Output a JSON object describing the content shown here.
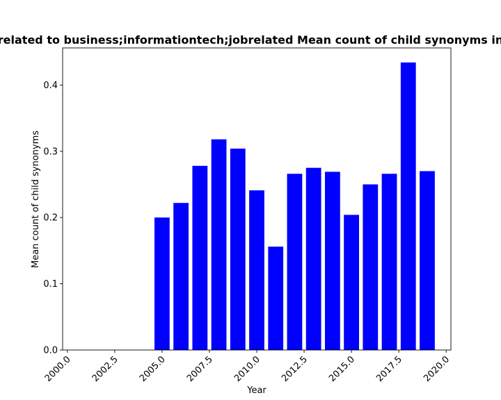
{
  "chart_data": {
    "type": "bar",
    "title": "Mean count of child synonyms in related to business;informationtech;jobrelated",
    "title_shown": "related to business;informationtech;jobrelated Mean count of child synonyms in",
    "xlabel": "Year",
    "ylabel": "Mean count of child synonyms",
    "bar_color": "#0000ff",
    "xlim": [
      1999.75,
      2020.25
    ],
    "ylim": [
      0,
      0.456
    ],
    "xticks": [
      2000.0,
      2002.5,
      2005.0,
      2007.5,
      2010.0,
      2012.5,
      2015.0,
      2017.5,
      2020.0
    ],
    "xtick_labels": [
      "2000.0",
      "2002.5",
      "2005.0",
      "2007.5",
      "2010.0",
      "2012.5",
      "2015.0",
      "2017.5",
      "2020.0"
    ],
    "yticks": [
      0.0,
      0.1,
      0.2,
      0.3,
      0.4
    ],
    "ytick_labels": [
      "0.0",
      "0.1",
      "0.2",
      "0.3",
      "0.4"
    ],
    "x": [
      2005,
      2006,
      2007,
      2008,
      2009,
      2010,
      2011,
      2012,
      2013,
      2014,
      2015,
      2016,
      2017,
      2018,
      2019
    ],
    "values": [
      0.2,
      0.222,
      0.278,
      0.318,
      0.304,
      0.241,
      0.156,
      0.266,
      0.275,
      0.269,
      0.204,
      0.25,
      0.266,
      0.434,
      0.27
    ],
    "grid": false,
    "legend": "none"
  }
}
